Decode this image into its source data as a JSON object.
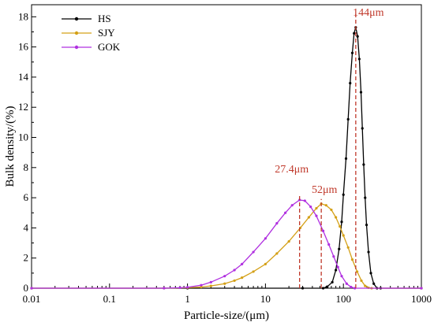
{
  "chart_data": {
    "type": "line",
    "xscale": "log",
    "xlim": [
      0.01,
      1000
    ],
    "ylim": [
      0,
      18.8
    ],
    "xlabel": "Particle-size/(μm)",
    "ylabel": "Bulk density/(%)",
    "xticks": [
      {
        "value": 0.01,
        "label": "0.01"
      },
      {
        "value": 0.1,
        "label": "0.1"
      },
      {
        "value": 1,
        "label": "1"
      },
      {
        "value": 10,
        "label": "10"
      },
      {
        "value": 100,
        "label": "100"
      },
      {
        "value": 1000,
        "label": "1000"
      }
    ],
    "yticks": [
      {
        "value": 0,
        "label": "0"
      },
      {
        "value": 2,
        "label": "2"
      },
      {
        "value": 4,
        "label": "4"
      },
      {
        "value": 6,
        "label": "6"
      },
      {
        "value": 8,
        "label": "8"
      },
      {
        "value": 10,
        "label": "10"
      },
      {
        "value": 12,
        "label": "12"
      },
      {
        "value": 14,
        "label": "14"
      },
      {
        "value": 16,
        "label": "16"
      },
      {
        "value": 18,
        "label": "18"
      }
    ],
    "legend_position": "top-left",
    "series": [
      {
        "name": "HS",
        "color": "#000000",
        "x": [
          0.01,
          1,
          30,
          55,
          62,
          72,
          80,
          88,
          95,
          100,
          108,
          115,
          122,
          130,
          137,
          144,
          152,
          160,
          168,
          175,
          182,
          190,
          198,
          210,
          225,
          245,
          270,
          300,
          1000
        ],
        "y": [
          0,
          0,
          0,
          0,
          0.1,
          0.4,
          1.2,
          2.6,
          4.4,
          6.2,
          8.6,
          11.2,
          13.6,
          15.6,
          16.9,
          17.3,
          16.7,
          15.2,
          13.0,
          10.6,
          8.2,
          6.0,
          4.2,
          2.4,
          1.0,
          0.3,
          0,
          0,
          0
        ]
      },
      {
        "name": "SJY",
        "color": "#d4a017",
        "x": [
          0.01,
          0.5,
          1,
          1.5,
          2,
          3,
          4,
          5,
          7,
          10,
          14,
          20,
          28,
          36,
          45,
          52,
          60,
          70,
          80,
          90,
          100,
          115,
          130,
          150,
          170,
          190,
          210,
          230,
          1000
        ],
        "y": [
          0,
          0,
          0.03,
          0.08,
          0.15,
          0.3,
          0.5,
          0.7,
          1.1,
          1.6,
          2.3,
          3.1,
          4.0,
          4.7,
          5.3,
          5.6,
          5.5,
          5.2,
          4.7,
          4.1,
          3.5,
          2.7,
          1.9,
          1.1,
          0.5,
          0.15,
          0.03,
          0,
          0
        ]
      },
      {
        "name": "GOK",
        "color": "#b030e0",
        "x": [
          0.01,
          0.5,
          0.8,
          1,
          1.5,
          2,
          3,
          4,
          5,
          7,
          10,
          14,
          18,
          22,
          27.4,
          32,
          38,
          45,
          55,
          65,
          75,
          85,
          95,
          110,
          125,
          140,
          1000
        ],
        "y": [
          0,
          0,
          0.03,
          0.06,
          0.2,
          0.4,
          0.8,
          1.2,
          1.6,
          2.4,
          3.3,
          4.3,
          5.0,
          5.5,
          5.85,
          5.8,
          5.4,
          4.8,
          3.8,
          2.9,
          2.1,
          1.4,
          0.8,
          0.3,
          0.08,
          0,
          0
        ]
      }
    ],
    "annotations": [
      {
        "label": "144μm",
        "x": 144,
        "y": 17.3,
        "color": "#c0392b"
      },
      {
        "label": "52μm",
        "x": 52,
        "y": 5.6,
        "color": "#c0392b"
      },
      {
        "label": "27.4μm",
        "x": 27.4,
        "y": 5.85,
        "color": "#c0392b"
      }
    ]
  }
}
